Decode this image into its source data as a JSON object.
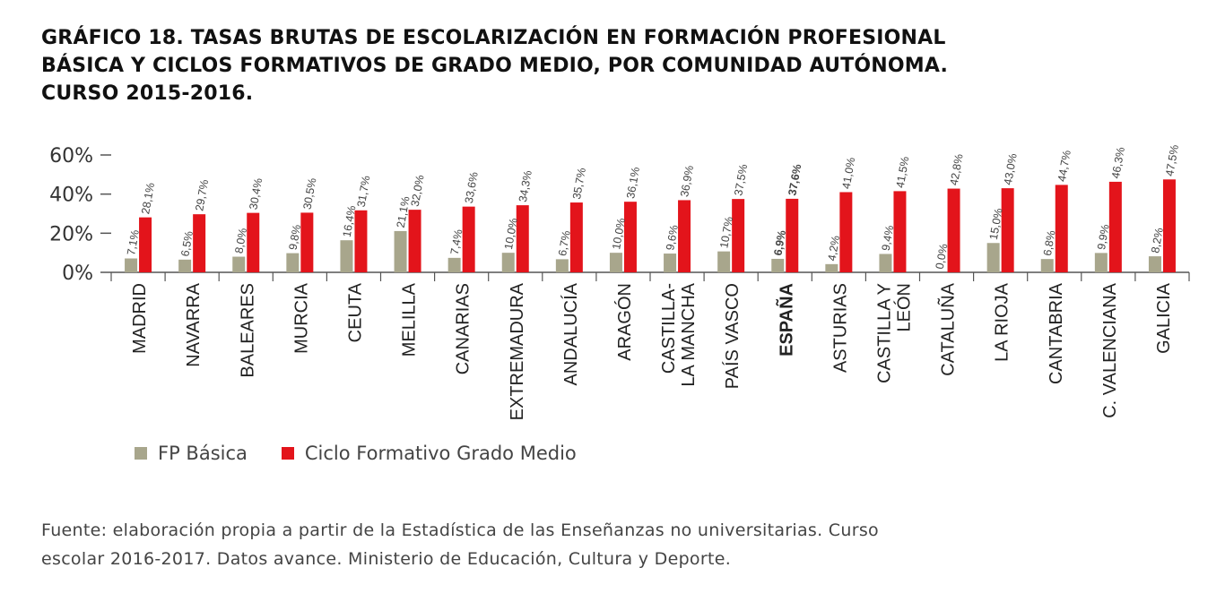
{
  "title": {
    "line1": "GRÁFICO 18. TASAS BRUTAS DE ESCOLARIZACIÓN EN FORMACIÓN PROFESIONAL",
    "line2": "BÁSICA Y CICLOS FORMATIVOS DE GRADO MEDIO, POR COMUNIDAD AUTÓNOMA.",
    "line3": "CURSO 2015-2016."
  },
  "legend": {
    "fp_basica": "FP Básica",
    "ciclo": "Ciclo Formativo Grado Medio"
  },
  "source": {
    "line1": "Fuente: elaboración propia a partir de la Estadística de las Enseñanzas no universitarias. Curso",
    "line2": "escolar 2016-2017. Datos avance. Ministerio de Educación, Cultura y Deporte."
  },
  "colors": {
    "fp_basica": "#a8a68c",
    "ciclo": "#e3141b",
    "axis": "#555555"
  },
  "chart_data": {
    "type": "bar",
    "ylim": [
      0,
      60
    ],
    "yticks": [
      "0%",
      "20%",
      "40%",
      "60%"
    ],
    "categories": [
      [
        "MADRID"
      ],
      [
        "NAVARRA"
      ],
      [
        "BALEARES"
      ],
      [
        "MURCIA"
      ],
      [
        "CEUTA"
      ],
      [
        "MELILLA"
      ],
      [
        "CANARIAS"
      ],
      [
        "EXTREMADURA"
      ],
      [
        "ANDALUCÍA"
      ],
      [
        "ARAGÓN"
      ],
      [
        "CASTILLA-",
        "LA MANCHA"
      ],
      [
        "PAÍS VASCO"
      ],
      [
        "ESPAÑA"
      ],
      [
        "ASTURIAS"
      ],
      [
        "CASTILLA Y",
        "LEÓN"
      ],
      [
        "CATALUÑA"
      ],
      [
        "LA RIOJA"
      ],
      [
        "CANTABRIA"
      ],
      [
        "C. VALENCIANA"
      ],
      [
        "GALICIA"
      ]
    ],
    "highlight_category": "ESPAÑA",
    "series": [
      {
        "name": "FP Básica",
        "values": [
          7.1,
          6.5,
          8.0,
          9.8,
          16.4,
          21.1,
          7.4,
          10.0,
          6.7,
          10.0,
          9.6,
          10.7,
          6.9,
          4.2,
          9.4,
          0.0,
          15.0,
          6.8,
          9.9,
          8.2
        ],
        "labels": [
          "7,1%",
          "6,5%",
          "8,0%",
          "9,8%",
          "16,4%",
          "21,1%",
          "7,4%",
          "10,0%",
          "6,7%",
          "10,0%",
          "9,6%",
          "10,7%",
          "6,9%",
          "4,2%",
          "9,4%",
          "0,0%",
          "15,0%",
          "6,8%",
          "9,9%",
          "8,2%"
        ]
      },
      {
        "name": "Ciclo Formativo Grado Medio",
        "values": [
          28.1,
          29.7,
          30.4,
          30.5,
          31.7,
          32.0,
          33.6,
          34.3,
          35.7,
          36.1,
          36.9,
          37.5,
          37.6,
          41.0,
          41.5,
          42.8,
          43.0,
          44.7,
          46.3,
          47.5
        ],
        "labels": [
          "28,1%",
          "29,7%",
          "30,4%",
          "30,5%",
          "31,7%",
          "32,0%",
          "33,6%",
          "34,3%",
          "35,7%",
          "36,1%",
          "36,9%",
          "37,5%",
          "37,6%",
          "41,0%",
          "41,5%",
          "42,8%",
          "43,0%",
          "44,7%",
          "46,3%",
          "47,5%"
        ]
      }
    ]
  }
}
